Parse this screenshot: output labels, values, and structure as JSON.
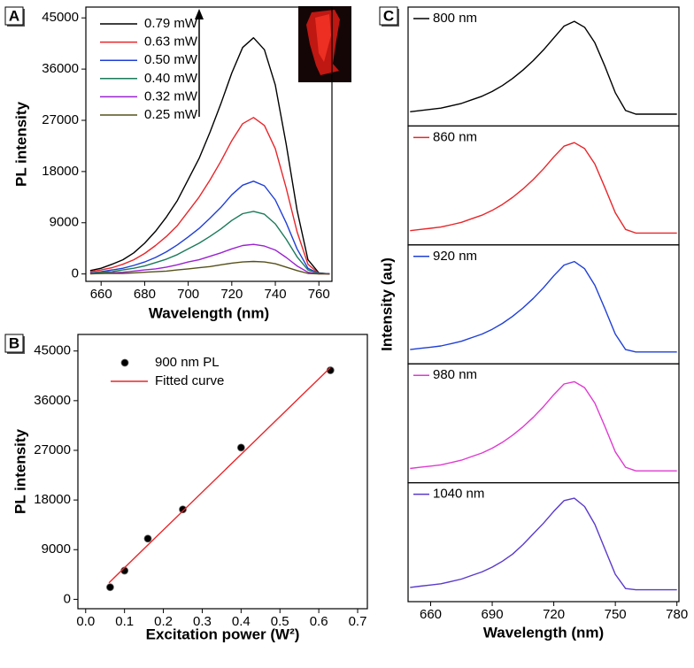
{
  "chart_data": [
    {
      "type": "line",
      "panel_label": "A",
      "x_label": "Wavelength (nm)",
      "y_label": "PL intensity",
      "x": [
        655,
        660,
        665,
        670,
        675,
        680,
        685,
        690,
        695,
        700,
        705,
        710,
        715,
        720,
        725,
        730,
        735,
        740,
        745,
        750,
        755,
        760,
        765
      ],
      "xlim": [
        653,
        766
      ],
      "xticks": [
        660,
        680,
        700,
        720,
        740,
        760
      ],
      "ylim": [
        -1300,
        46900
      ],
      "yticks": [
        0,
        9000,
        18000,
        27000,
        36000,
        45000
      ],
      "series": [
        {
          "name": "0.79 mW",
          "color": "#000000",
          "values": [
            600,
            1000,
            1700,
            2500,
            3700,
            5400,
            7500,
            10000,
            12900,
            16600,
            20300,
            24900,
            29900,
            35300,
            39800,
            41500,
            39400,
            33200,
            22800,
            11200,
            2500,
            200,
            0
          ]
        },
        {
          "name": "0.63 mW",
          "color": "#e8262a",
          "values": [
            400,
            700,
            1100,
            1700,
            2500,
            3600,
            5000,
            6600,
            8500,
            11000,
            13500,
            16500,
            19800,
            23400,
            26400,
            27500,
            26100,
            22000,
            15100,
            7400,
            1700,
            100,
            0
          ]
        },
        {
          "name": "0.50 mW",
          "color": "#1f3fd6",
          "values": [
            200,
            400,
            700,
            1000,
            1500,
            2100,
            2900,
            3900,
            5100,
            6500,
            8000,
            9800,
            11700,
            13900,
            15600,
            16300,
            15500,
            13000,
            9000,
            4400,
            1000,
            100,
            0
          ]
        },
        {
          "name": "0.40 mW",
          "color": "#1a7a5a",
          "values": [
            200,
            300,
            400,
            700,
            1000,
            1400,
            2000,
            2600,
            3400,
            4400,
            5400,
            6600,
            7900,
            9400,
            10600,
            11000,
            10500,
            8800,
            6100,
            3000,
            700,
            100,
            0
          ]
        },
        {
          "name": "0.32 mW",
          "color": "#9a22d0",
          "values": [
            100,
            100,
            200,
            300,
            500,
            700,
            900,
            1200,
            1600,
            2100,
            2500,
            3100,
            3700,
            4400,
            5000,
            5200,
            4900,
            4200,
            2900,
            1400,
            300,
            0,
            0
          ]
        },
        {
          "name": "0.25 mW",
          "color": "#55501a",
          "values": [
            0,
            100,
            100,
            100,
            200,
            300,
            400,
            500,
            700,
            900,
            1100,
            1300,
            1600,
            1900,
            2100,
            2200,
            2100,
            1800,
            1200,
            600,
            100,
            0,
            0
          ]
        }
      ]
    },
    {
      "type": "scatter",
      "panel_label": "B",
      "x_label": "Excitation power (W²)",
      "y_label": "PL intensity",
      "xlim": [
        -0.02,
        0.725
      ],
      "xticks": [
        {
          "value": 0,
          "label": "0.0"
        },
        0.1,
        0.2,
        0.3,
        0.4,
        0.5,
        0.6,
        0.7
      ],
      "ylim": [
        -1700,
        48000
      ],
      "yticks": [
        0,
        9000,
        18000,
        27000,
        36000,
        45000
      ],
      "series": [
        {
          "name": "900 nm PL",
          "color": "#000000",
          "x": [
            0.063,
            0.1,
            0.16,
            0.25,
            0.4,
            0.63
          ],
          "values": [
            2200,
            5200,
            11000,
            16300,
            27500,
            41500
          ]
        },
        {
          "name": "Fitted curve",
          "color": "#e8262a",
          "line": true,
          "x": [
            0.06,
            0.63
          ],
          "values": [
            3000,
            42000
          ]
        }
      ]
    },
    {
      "type": "line",
      "panel_label": "C",
      "x_label": "Wavelength (nm)",
      "y_label": "Intensity (au)",
      "stacked_panels": true,
      "x": [
        650,
        655,
        660,
        665,
        670,
        675,
        680,
        685,
        690,
        695,
        700,
        705,
        710,
        715,
        720,
        725,
        730,
        735,
        740,
        745,
        750,
        755,
        760,
        765,
        770,
        775,
        780
      ],
      "xlim": [
        649,
        781
      ],
      "xticks": [
        660,
        690,
        720,
        750,
        780
      ],
      "ylim": [
        0,
        100
      ],
      "series": [
        {
          "name": "800 nm",
          "color": "#000000",
          "values": [
            12,
            13,
            14,
            15,
            17,
            19,
            22,
            25,
            29,
            34,
            40,
            47,
            55,
            64,
            74,
            84,
            88,
            83,
            70,
            50,
            28,
            13,
            10,
            10,
            10,
            10,
            10
          ]
        },
        {
          "name": "860 nm",
          "color": "#e8262a",
          "values": [
            12,
            13,
            14,
            15,
            17,
            19,
            22,
            25,
            29,
            34,
            40,
            47,
            55,
            64,
            74,
            83,
            86,
            81,
            68,
            48,
            27,
            13,
            10,
            10,
            10,
            10,
            10
          ]
        },
        {
          "name": "920 nm",
          "color": "#1f3fd6",
          "values": [
            12,
            13,
            14,
            15,
            17,
            19,
            22,
            25,
            29,
            34,
            40,
            47,
            55,
            64,
            74,
            83,
            86,
            80,
            66,
            46,
            25,
            12,
            10,
            10,
            10,
            10,
            10
          ]
        },
        {
          "name": "980 nm",
          "color": "#e03ad0",
          "values": [
            12,
            13,
            14,
            15,
            17,
            19,
            22,
            25,
            29,
            34,
            40,
            47,
            55,
            64,
            74,
            83,
            85,
            80,
            67,
            47,
            26,
            13,
            10,
            10,
            10,
            10,
            10
          ]
        },
        {
          "name": "1040 nm",
          "color": "#5a3acb",
          "values": [
            12,
            13,
            14,
            15,
            17,
            19,
            22,
            25,
            29,
            34,
            40,
            48,
            57,
            66,
            76,
            85,
            87,
            80,
            65,
            44,
            23,
            11,
            10,
            10,
            10,
            10,
            10
          ]
        }
      ]
    }
  ]
}
